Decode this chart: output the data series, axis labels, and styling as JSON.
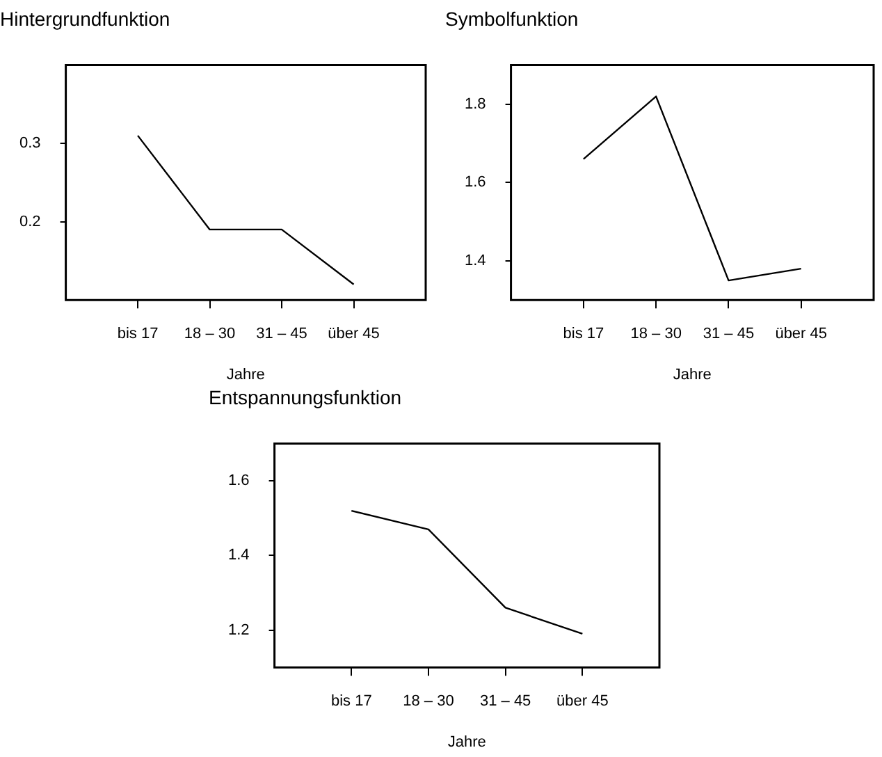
{
  "chart_data": [
    {
      "type": "line",
      "title": "Hintergrundfunktion",
      "xlabel": "Jahre",
      "categories": [
        "bis 17",
        "18 – 30",
        "31 – 45",
        "über 45"
      ],
      "values": [
        0.31,
        0.19,
        0.19,
        0.12
      ],
      "color": "#000000",
      "ylim": [
        0.1,
        0.4
      ],
      "yticks": [
        0.2,
        0.3
      ]
    },
    {
      "type": "line",
      "title": "Symbolfunktion",
      "xlabel": "Jahre",
      "categories": [
        "bis 17",
        "18 – 30",
        "31 – 45",
        "über 45"
      ],
      "values": [
        1.66,
        1.82,
        1.35,
        1.38
      ],
      "color": "#000000",
      "ylim": [
        1.3,
        1.9
      ],
      "yticks": [
        1.4,
        1.6,
        1.8
      ]
    },
    {
      "type": "line",
      "title": "Entspannungsfunktion",
      "xlabel": "Jahre",
      "categories": [
        "bis 17",
        "18 – 30",
        "31 – 45",
        "über 45"
      ],
      "values": [
        1.52,
        1.47,
        1.26,
        1.19
      ],
      "color": "#000000",
      "ylim": [
        1.1,
        1.7
      ],
      "yticks": [
        1.2,
        1.4,
        1.6
      ]
    }
  ]
}
